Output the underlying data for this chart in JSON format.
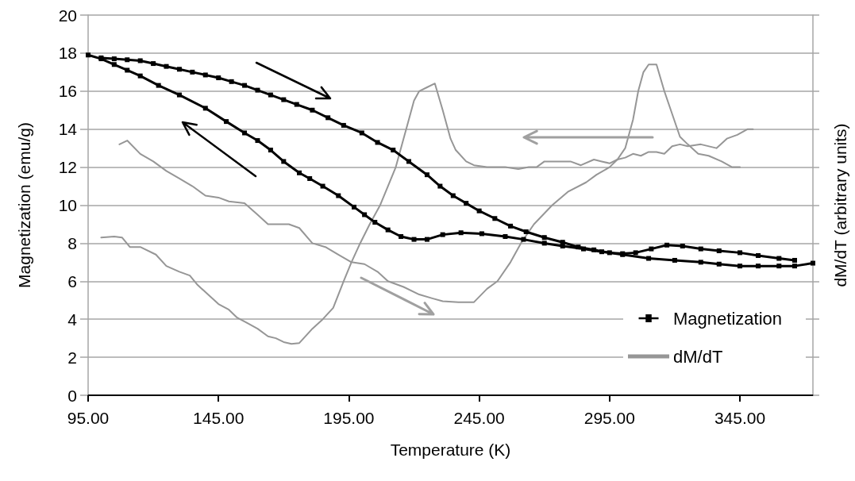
{
  "chart_data": {
    "type": "line",
    "xlabel": "Temperature (K)",
    "ylabel": "Magnetization (emu/g)",
    "y2label": "dM/dT (arbitrary units)",
    "xlim": [
      95,
      373
    ],
    "xticks": [
      {
        "value": 95,
        "label": "95.00"
      },
      {
        "value": 145,
        "label": "145.00"
      },
      {
        "value": 195,
        "label": "195.00"
      },
      {
        "value": 245,
        "label": "245.00"
      },
      {
        "value": 295,
        "label": "295.00"
      },
      {
        "value": 345,
        "label": "345.00"
      }
    ],
    "ylim": [
      0,
      20
    ],
    "yticks": [
      0,
      2,
      4,
      6,
      8,
      10,
      12,
      14,
      16,
      18,
      20
    ],
    "grid": "y",
    "legend": "bottom right",
    "series": [
      {
        "name": "Magnetization",
        "color": "#000000",
        "marker": "square",
        "x": [
          95,
          100,
          105,
          110,
          115,
          122,
          130,
          140,
          148,
          155,
          160,
          165,
          170,
          176,
          180,
          185,
          191,
          197,
          201,
          205,
          210,
          215,
          220,
          225,
          231,
          238,
          246,
          255,
          262,
          270,
          277,
          285,
          292,
          300,
          310,
          320,
          330,
          337,
          345,
          352,
          360,
          366,
          373
        ],
        "values": [
          17.9,
          17.7,
          17.4,
          17.1,
          16.8,
          16.3,
          15.8,
          15.1,
          14.4,
          13.8,
          13.4,
          12.9,
          12.3,
          11.7,
          11.4,
          11.0,
          10.5,
          9.9,
          9.5,
          9.1,
          8.7,
          8.35,
          8.2,
          8.2,
          8.45,
          8.55,
          8.5,
          8.35,
          8.2,
          8.0,
          7.85,
          7.7,
          7.55,
          7.4,
          7.2,
          7.1,
          7.0,
          6.9,
          6.8,
          6.8,
          6.8,
          6.8,
          6.95
        ]
      },
      {
        "color": "#000000",
        "marker": "square",
        "x": [
          100,
          105,
          110,
          115,
          120,
          125,
          130,
          135,
          140,
          145,
          150,
          155,
          160,
          165,
          170,
          175,
          181,
          187,
          193,
          200,
          206,
          212,
          218,
          225,
          230,
          235,
          240,
          245,
          251,
          257,
          263,
          270,
          277,
          283,
          289,
          295,
          300,
          305,
          311,
          317,
          323,
          330,
          337,
          345,
          352,
          360,
          366
        ],
        "values": [
          17.75,
          17.7,
          17.65,
          17.6,
          17.45,
          17.3,
          17.15,
          17.0,
          16.85,
          16.7,
          16.5,
          16.3,
          16.05,
          15.8,
          15.55,
          15.3,
          15.0,
          14.6,
          14.2,
          13.8,
          13.3,
          12.9,
          12.3,
          11.6,
          11.0,
          10.5,
          10.1,
          9.7,
          9.3,
          8.9,
          8.6,
          8.3,
          8.05,
          7.8,
          7.65,
          7.5,
          7.45,
          7.5,
          7.7,
          7.9,
          7.85,
          7.7,
          7.6,
          7.5,
          7.35,
          7.2,
          7.1
        ]
      },
      {
        "name": "dM/dT",
        "color": "#969696",
        "marker": "none",
        "x": [
          107,
          110,
          115,
          120,
          125,
          130,
          135,
          140,
          145,
          149,
          155,
          160,
          164,
          168,
          172,
          176,
          181,
          186,
          191,
          196,
          201,
          206,
          210,
          216,
          222,
          227,
          231,
          237,
          243,
          248,
          252,
          257,
          261,
          266,
          273,
          279,
          286,
          290,
          295,
          298,
          301,
          304,
          306,
          308,
          310,
          313,
          316,
          319,
          322,
          325,
          329,
          333,
          338,
          342,
          345
        ],
        "values": [
          13.2,
          13.4,
          12.7,
          12.3,
          11.8,
          11.4,
          11.0,
          10.5,
          10.4,
          10.2,
          10.1,
          9.5,
          9.0,
          9.0,
          9.0,
          8.8,
          8.0,
          7.8,
          7.4,
          7.0,
          6.9,
          6.5,
          6.0,
          5.7,
          5.3,
          5.1,
          4.95,
          4.9,
          4.9,
          5.6,
          6.0,
          7.0,
          8.0,
          9.0,
          10.0,
          10.7,
          11.2,
          11.6,
          12.0,
          12.4,
          13.0,
          14.5,
          16.0,
          17.0,
          17.4,
          17.4,
          16.0,
          14.8,
          13.6,
          13.2,
          12.7,
          12.6,
          12.3,
          12.0,
          12.0
        ]
      },
      {
        "color": "#969696",
        "marker": "none",
        "x": [
          100,
          105,
          108,
          111,
          115,
          121,
          125,
          130,
          134,
          137,
          141,
          145,
          149,
          152,
          156,
          160,
          164,
          167,
          170,
          173,
          176,
          179,
          181,
          185,
          189,
          193,
          196,
          199,
          203,
          207,
          210,
          213,
          217,
          220,
          222,
          225,
          228,
          231,
          234,
          236,
          240,
          243,
          248,
          255,
          260,
          264,
          267,
          270,
          275,
          280,
          284,
          289,
          292,
          295,
          298,
          301,
          304,
          307,
          310,
          313,
          316,
          319,
          322,
          325,
          330,
          336,
          340,
          344,
          348,
          350
        ],
        "values": [
          8.3,
          8.35,
          8.3,
          7.8,
          7.8,
          7.4,
          6.8,
          6.5,
          6.3,
          5.8,
          5.3,
          4.8,
          4.5,
          4.1,
          3.8,
          3.5,
          3.1,
          3.0,
          2.8,
          2.7,
          2.75,
          3.2,
          3.5,
          4.0,
          4.6,
          6.0,
          7.0,
          7.9,
          9.0,
          10.0,
          11.0,
          12.0,
          14.0,
          15.5,
          16.0,
          16.2,
          16.4,
          15.0,
          13.5,
          12.9,
          12.3,
          12.1,
          12.0,
          12.0,
          11.9,
          12.0,
          12.0,
          12.3,
          12.3,
          12.3,
          12.1,
          12.4,
          12.3,
          12.2,
          12.4,
          12.5,
          12.7,
          12.6,
          12.8,
          12.8,
          12.7,
          13.1,
          13.2,
          13.1,
          13.2,
          13.0,
          13.5,
          13.7,
          14.0,
          14.0
        ]
      }
    ]
  }
}
